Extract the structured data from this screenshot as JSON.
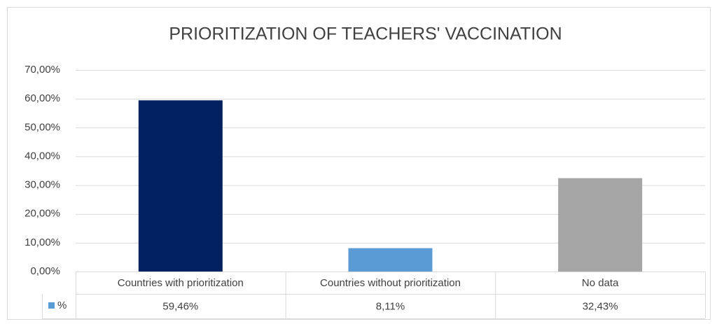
{
  "chart_data": {
    "type": "bar",
    "title": "PRIORITIZATION OF TEACHERS' VACCINATION",
    "categories": [
      "Countries with prioritization",
      "Countries without prioritization",
      "No data"
    ],
    "series": [
      {
        "name": "%",
        "color": "#5b9bd5",
        "colors": [
          "#002060",
          "#5b9bd5",
          "#a5a5a5"
        ],
        "values": [
          59.46,
          8.11,
          32.43
        ],
        "value_labels": [
          "59,46%",
          "8,11%",
          "32,43%"
        ]
      }
    ],
    "ylim": [
      0,
      70
    ],
    "yticks": [
      {
        "value": 0,
        "label": "0,00%"
      },
      {
        "value": 10,
        "label": "10,00%"
      },
      {
        "value": 20,
        "label": "20,00%"
      },
      {
        "value": 30,
        "label": "30,00%"
      },
      {
        "value": 40,
        "label": "40,00%"
      },
      {
        "value": 50,
        "label": "50,00%"
      },
      {
        "value": 60,
        "label": "60,00%"
      },
      {
        "value": 70,
        "label": "70,00%"
      }
    ],
    "grid": true
  }
}
